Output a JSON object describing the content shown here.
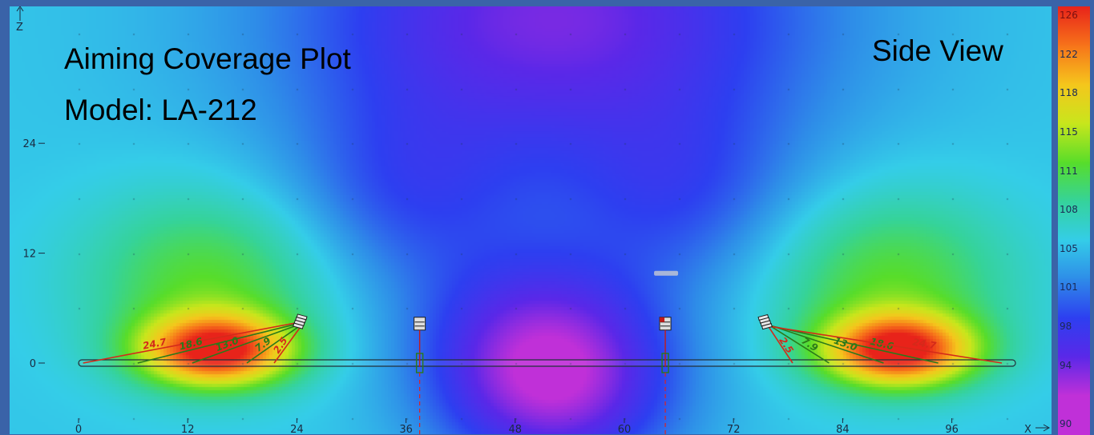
{
  "titles": {
    "main_line1": "Aiming Coverage Plot",
    "main_line2": "Model: LA-212",
    "view": "Side View"
  },
  "axes": {
    "x_arrow_label": "X",
    "z_arrow_label": "Z"
  },
  "color_scale": {
    "labels": [
      "126",
      "122",
      "118",
      "115",
      "111",
      "108",
      "105",
      "101",
      "98",
      "94",
      "90"
    ],
    "colors": [
      "#e8231a",
      "#f7741a",
      "#f5c61c",
      "#c8e61c",
      "#57dd2a",
      "#35d39a",
      "#34cde8",
      "#2e8de8",
      "#2d3ff0",
      "#5a28e8",
      "#c030d8"
    ]
  },
  "chart_data": {
    "type": "heatmap",
    "title": "Aiming Coverage Plot",
    "subtitle": "Model: LA-212",
    "view": "Side View",
    "xlabel": "X",
    "ylabel": "Z",
    "xlim": [
      -1,
      106
    ],
    "ylim": [
      -6,
      40
    ],
    "x_ticks": [
      0,
      12,
      24,
      36,
      48,
      60,
      72,
      84,
      96
    ],
    "y_ticks": [
      0,
      12,
      24
    ],
    "grid": false,
    "colorbar": {
      "min": 90,
      "max": 126,
      "ticks": [
        126,
        122,
        118,
        115,
        111,
        108,
        105,
        101,
        98,
        94,
        90
      ],
      "position": "right"
    },
    "floor": {
      "x_start": 0,
      "x_end": 103,
      "z": 0
    },
    "arrays": [
      {
        "position": [
          24.5,
          4.5
        ],
        "side": "left",
        "aim_lines": [
          {
            "label": "24.7",
            "color": "#d42a1a",
            "to_x": 0.5
          },
          {
            "label": "18.6",
            "color": "#2a7a1a",
            "to_x": 6.5
          },
          {
            "label": "13.0",
            "color": "#2a7a1a",
            "to_x": 12.5
          },
          {
            "label": "7.9",
            "color": "#2a7a1a",
            "to_x": 18.5
          },
          {
            "label": "2.5",
            "color": "#d42a1a",
            "to_x": 21.5
          }
        ]
      },
      {
        "position": [
          75.5,
          4.5
        ],
        "side": "right",
        "aim_lines": [
          {
            "label": "2.5",
            "color": "#d42a1a",
            "to_x": 78.5
          },
          {
            "label": "7.9",
            "color": "#2a7a1a",
            "to_x": 82.5
          },
          {
            "label": "13.0",
            "color": "#2a7a1a",
            "to_x": 88.5
          },
          {
            "label": "18.6",
            "color": "#2a7a1a",
            "to_x": 94.5
          },
          {
            "label": "24.7",
            "color": "#d42a1a",
            "to_x": 101.5
          }
        ]
      }
    ],
    "hot_spots": [
      {
        "x": 15,
        "z": 1.5,
        "value": 126
      },
      {
        "x": 90,
        "z": 1.5,
        "value": 126
      },
      {
        "x": 14,
        "z": 9,
        "value": 112
      },
      {
        "x": 89,
        "z": 9,
        "value": 112
      },
      {
        "x": 50,
        "z": 2,
        "value": 96
      },
      {
        "x": 53,
        "z": -3,
        "value": 95
      },
      {
        "x": 52,
        "z": 38,
        "value": 92
      },
      {
        "x": 36,
        "z": 18,
        "value": 99
      },
      {
        "x": 66,
        "z": 18,
        "value": 99
      }
    ],
    "background_value": 104
  }
}
